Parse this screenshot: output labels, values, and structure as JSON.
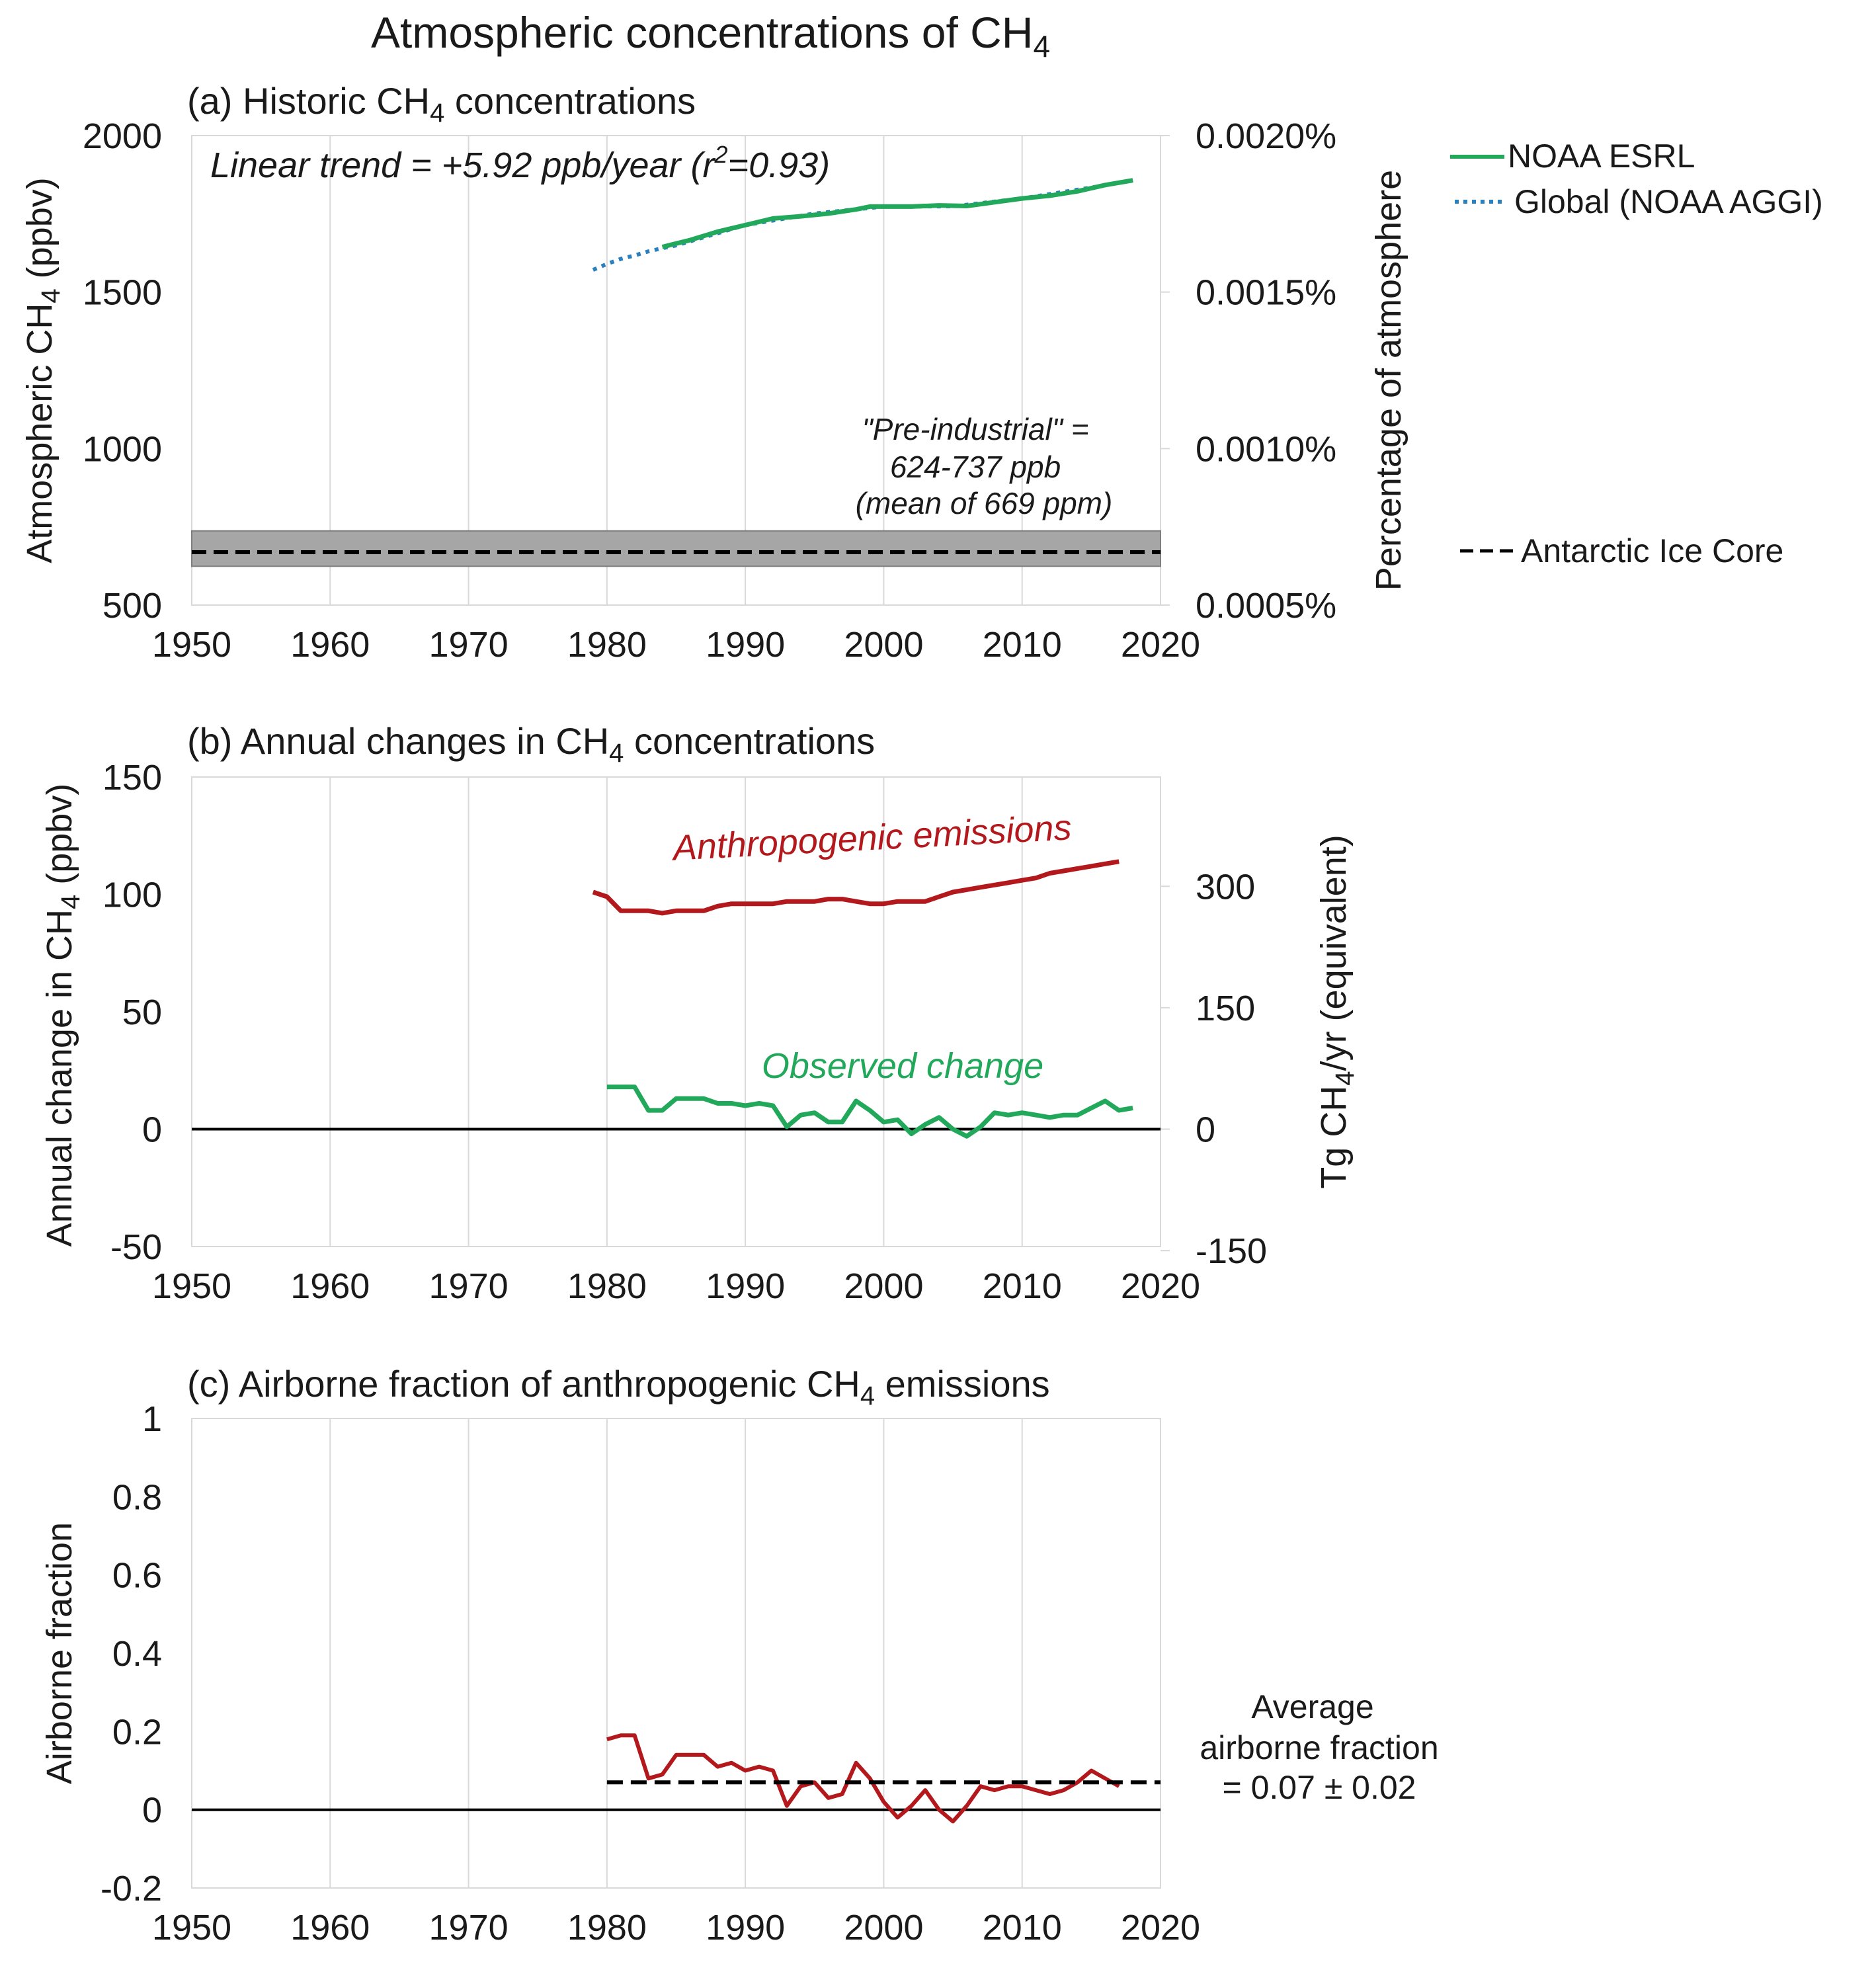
{
  "title": "Atmospheric concentrations of CH",
  "title_sub": "4",
  "colors": {
    "green": "#22a85a",
    "blue": "#2a7fbf",
    "red": "#b3191c",
    "band": "#a6a6a6",
    "black": "#000000"
  },
  "panels": {
    "a": {
      "title_pre": "(a) Historic CH",
      "title_sub": "4",
      "title_post": " concentrations",
      "ylabel_pre": "Atmospheric CH",
      "ylabel_sub": "4",
      "ylabel_post": " (ppbv)",
      "y2label": "Percentage of atmosphere",
      "trend_pre": "Linear trend = +5.92 ppb/year (r",
      "trend_sup": "2",
      "trend_post": "=0.93)",
      "preind_line1": "\"Pre-industrial\" =",
      "preind_line2": "624-737 ppb",
      "preind_line3": "(mean of 669 ppm)",
      "legend_noaa": "NOAA ESRL",
      "legend_global": "Global (NOAA AGGI)",
      "legend_ice": "Antarctic Ice Core"
    },
    "b": {
      "title_pre": "(b) Annual changes in CH",
      "title_sub": "4",
      "title_post": " concentrations",
      "ylabel_pre": "Annual change in CH",
      "ylabel_sub": "4",
      "ylabel_post": " (ppbv)",
      "y2label_pre": "Tg CH",
      "y2label_sub": "4",
      "y2label_post": "/yr (equivalent)",
      "anthro_label": "Anthropogenic emissions",
      "observed_label": "Observed change"
    },
    "c": {
      "title_pre": "(c) Airborne fraction of anthropogenic CH",
      "title_sub": "4",
      "title_post": " emissions",
      "ylabel": "Airborne fraction",
      "avg_line1": "Average",
      "avg_line2": "airborne fraction",
      "avg_line3": "= 0.07 ± 0.02"
    }
  },
  "chart_data": [
    {
      "type": "line",
      "panel": "a",
      "title": "(a) Historic CH4 concentrations",
      "xlabel": "",
      "ylabel": "Atmospheric CH4 (ppbv)",
      "y2label": "Percentage of atmosphere",
      "xlim": [
        1950,
        2020
      ],
      "ylim": [
        500,
        2000
      ],
      "xticks": [
        "1950",
        "1960",
        "1970",
        "1980",
        "1990",
        "2000",
        "2010",
        "2020"
      ],
      "yticks": [
        "500",
        "1000",
        "1500",
        "2000"
      ],
      "y2ticks": [
        "0.0005%",
        "0.0010%",
        "0.0015%",
        "0.0020%"
      ],
      "series": [
        {
          "name": "Global (NOAA AGGI)",
          "style": "dotted",
          "x": [
            1979,
            1980,
            1981,
            1982,
            1983,
            1984,
            1985,
            1990,
            1995,
            2000,
            2005,
            2010,
            2015,
            2018
          ],
          "y": [
            1571,
            1590,
            1606,
            1617,
            1630,
            1640,
            1649,
            1714,
            1751,
            1773,
            1774,
            1799,
            1834,
            1857
          ]
        },
        {
          "name": "NOAA ESRL",
          "style": "solid",
          "x": [
            1984,
            1986,
            1988,
            1990,
            1992,
            1994,
            1996,
            1998,
            1999,
            2000,
            2002,
            2004,
            2006,
            2008,
            2010,
            2012,
            2014,
            2016,
            2018
          ],
          "y": [
            1644,
            1666,
            1693,
            1714,
            1735,
            1742,
            1751,
            1764,
            1773,
            1773,
            1773,
            1777,
            1775,
            1787,
            1799,
            1808,
            1822,
            1842,
            1857
          ]
        },
        {
          "name": "Antarctic Ice Core",
          "style": "dashed",
          "x": [
            1950,
            2020
          ],
          "y": [
            669,
            669
          ]
        }
      ],
      "band": {
        "label": "Pre-industrial",
        "range": [
          624,
          737
        ]
      },
      "annotations": [
        "Linear trend = +5.92 ppb/year (r2=0.93)",
        "\"Pre-industrial\" = 624-737 ppb (mean of 669 ppm)"
      ]
    },
    {
      "type": "line",
      "panel": "b",
      "title": "(b) Annual changes in CH4 concentrations",
      "ylabel": "Annual change in CH4 (ppbv)",
      "y2label": "Tg CH4/yr (equivalent)",
      "xlim": [
        1950,
        2020
      ],
      "ylim": [
        -50,
        150
      ],
      "xticks": [
        "1950",
        "1960",
        "1970",
        "1980",
        "1990",
        "2000",
        "2010",
        "2020"
      ],
      "yticks": [
        "-50",
        "0",
        "50",
        "100",
        "150"
      ],
      "y2ticks": [
        "-150",
        "0",
        "150",
        "300"
      ],
      "series": [
        {
          "name": "Anthropogenic emissions",
          "x": [
            1979,
            1980,
            1981,
            1982,
            1983,
            1984,
            1985,
            1986,
            1987,
            1988,
            1989,
            1990,
            1991,
            1992,
            1993,
            1994,
            1995,
            1996,
            1997,
            1998,
            1999,
            2000,
            2001,
            2002,
            2003,
            2004,
            2005,
            2006,
            2007,
            2008,
            2009,
            2010,
            2011,
            2012,
            2013,
            2014,
            2015,
            2016,
            2017
          ],
          "y": [
            101,
            99,
            93,
            93,
            93,
            92,
            93,
            93,
            93,
            95,
            96,
            96,
            96,
            96,
            97,
            97,
            97,
            98,
            98,
            97,
            96,
            96,
            97,
            97,
            97,
            99,
            101,
            102,
            103,
            104,
            105,
            106,
            107,
            109,
            110,
            111,
            112,
            113,
            114
          ]
        },
        {
          "name": "Observed change",
          "x": [
            1980,
            1981,
            1982,
            1983,
            1984,
            1985,
            1986,
            1987,
            1988,
            1989,
            1990,
            1991,
            1992,
            1993,
            1994,
            1995,
            1996,
            1997,
            1998,
            1999,
            2000,
            2001,
            2002,
            2003,
            2004,
            2005,
            2006,
            2007,
            2008,
            2009,
            2010,
            2011,
            2012,
            2013,
            2014,
            2015,
            2016,
            2017,
            2018
          ],
          "y": [
            18,
            18,
            18,
            8,
            8,
            13,
            13,
            13,
            11,
            11,
            10,
            11,
            10,
            1,
            6,
            7,
            3,
            3,
            12,
            8,
            3,
            4,
            -2,
            2,
            5,
            0,
            -3,
            1,
            7,
            6,
            7,
            6,
            5,
            6,
            6,
            9,
            12,
            8,
            9
          ]
        },
        {
          "name": "Zero",
          "x": [
            1950,
            2020
          ],
          "y": [
            0,
            0
          ]
        }
      ]
    },
    {
      "type": "line",
      "panel": "c",
      "title": "(c) Airborne fraction of anthropogenic CH4 emissions",
      "ylabel": "Airborne fraction",
      "xlim": [
        1950,
        2020
      ],
      "ylim": [
        -0.2,
        1
      ],
      "xticks": [
        "1950",
        "1960",
        "1970",
        "1980",
        "1990",
        "2000",
        "2010",
        "2020"
      ],
      "yticks": [
        "-0.2",
        "0",
        "0.2",
        "0.4",
        "0.6",
        "0.8",
        "1"
      ],
      "series": [
        {
          "name": "Airborne fraction",
          "x": [
            1980,
            1981,
            1982,
            1983,
            1984,
            1985,
            1986,
            1987,
            1988,
            1989,
            1990,
            1991,
            1992,
            1993,
            1994,
            1995,
            1996,
            1997,
            1998,
            1999,
            2000,
            2001,
            2002,
            2003,
            2004,
            2005,
            2006,
            2007,
            2008,
            2009,
            2010,
            2011,
            2012,
            2013,
            2014,
            2015,
            2016,
            2017
          ],
          "y": [
            0.18,
            0.19,
            0.19,
            0.08,
            0.09,
            0.14,
            0.14,
            0.14,
            0.11,
            0.12,
            0.1,
            0.11,
            0.1,
            0.01,
            0.06,
            0.07,
            0.03,
            0.04,
            0.12,
            0.08,
            0.02,
            -0.02,
            0.01,
            0.05,
            0.0,
            -0.03,
            0.01,
            0.06,
            0.05,
            0.06,
            0.06,
            0.05,
            0.04,
            0.05,
            0.07,
            0.1,
            0.08,
            0.06
          ]
        },
        {
          "name": "Average airborne fraction",
          "style": "dashed",
          "x": [
            1980,
            2020
          ],
          "y": [
            0.07,
            0.07
          ]
        },
        {
          "name": "Zero",
          "x": [
            1950,
            2020
          ],
          "y": [
            0,
            0
          ]
        }
      ],
      "annotations": [
        "Average airborne fraction = 0.07 ± 0.02"
      ]
    }
  ]
}
